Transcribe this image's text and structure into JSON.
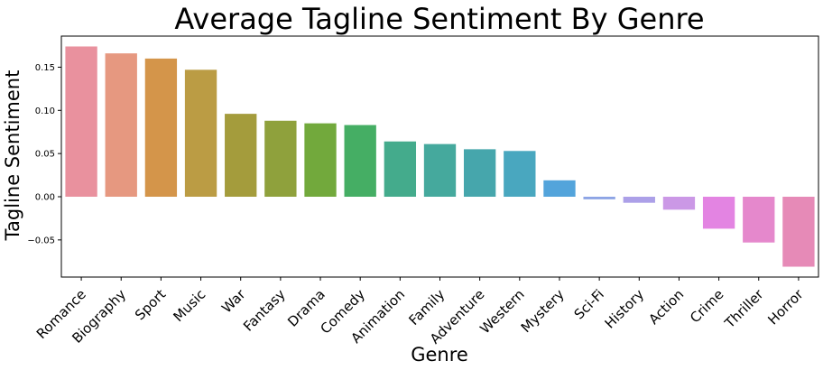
{
  "chart_data": {
    "type": "bar",
    "title": "Average Tagline Sentiment By Genre",
    "xlabel": "Genre",
    "ylabel": "Tagline Sentiment",
    "ylim": [
      -0.093,
      0.186
    ],
    "yticks": [
      -0.05,
      0.0,
      0.05,
      0.1,
      0.15
    ],
    "ytick_labels": [
      "−0.05",
      "0.00",
      "0.05",
      "0.10",
      "0.15"
    ],
    "grid": false,
    "categories": [
      "Romance",
      "Biography",
      "Sport",
      "Music",
      "War",
      "Fantasy",
      "Drama",
      "Comedy",
      "Animation",
      "Family",
      "Adventure",
      "Western",
      "Mystery",
      "Sci-Fi",
      "History",
      "Action",
      "Crime",
      "Thriller",
      "Horror"
    ],
    "values": [
      0.174,
      0.166,
      0.16,
      0.147,
      0.096,
      0.088,
      0.085,
      0.083,
      0.064,
      0.061,
      0.055,
      0.053,
      0.019,
      -0.003,
      -0.007,
      -0.015,
      -0.037,
      -0.053,
      -0.081
    ],
    "colors": [
      "#e9919e",
      "#e69880",
      "#d4954a",
      "#bb9c44",
      "#a49c3c",
      "#8fa13c",
      "#72a93c",
      "#45ae64",
      "#44ab8c",
      "#45a99d",
      "#46a6ac",
      "#49a7bf",
      "#53a4db",
      "#8da4e5",
      "#aca0e8",
      "#cb98e6",
      "#e384e2",
      "#e588cc",
      "#e68ab7"
    ]
  }
}
